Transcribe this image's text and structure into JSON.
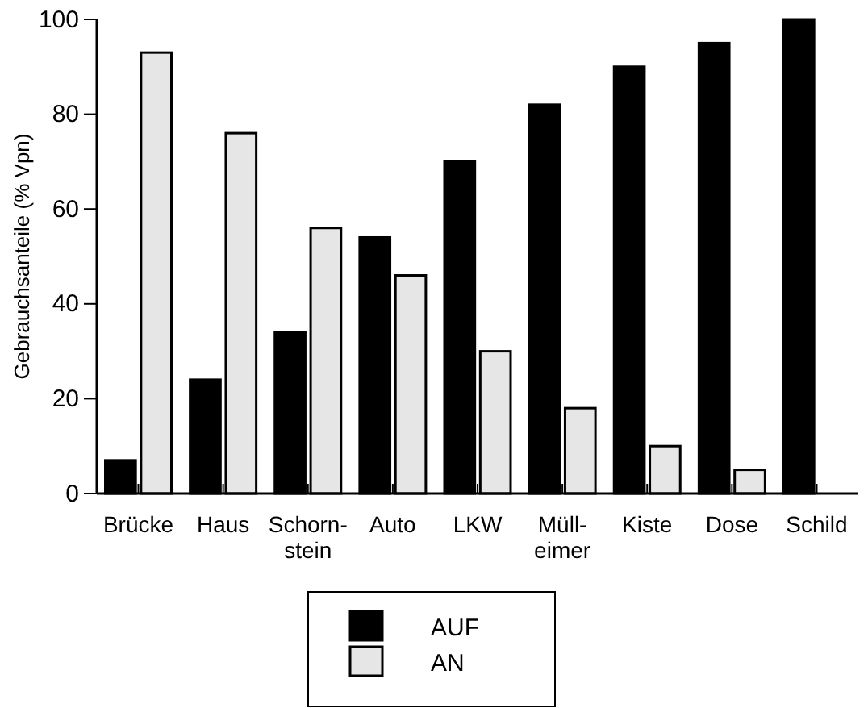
{
  "chart_data": {
    "type": "bar",
    "ylabel": "Gebrauchsanteile (% Vpn)",
    "categories": [
      "Brücke",
      "Haus",
      "Schorn-\nstein",
      "Auto",
      "LKW",
      "Müll-\neimer",
      "Kiste",
      "Dose",
      "Schild"
    ],
    "series": [
      {
        "name": "AUF",
        "color": "#000000",
        "values": [
          7,
          24,
          34,
          54,
          70,
          82,
          90,
          95,
          100
        ]
      },
      {
        "name": "AN",
        "color": "#e6e6e6",
        "values": [
          93,
          76,
          56,
          46,
          30,
          18,
          10,
          5,
          0
        ]
      }
    ],
    "ylim": [
      0,
      100
    ],
    "yticks": [
      0,
      20,
      40,
      60,
      80,
      100
    ],
    "grid": false,
    "legend": "bottom"
  }
}
